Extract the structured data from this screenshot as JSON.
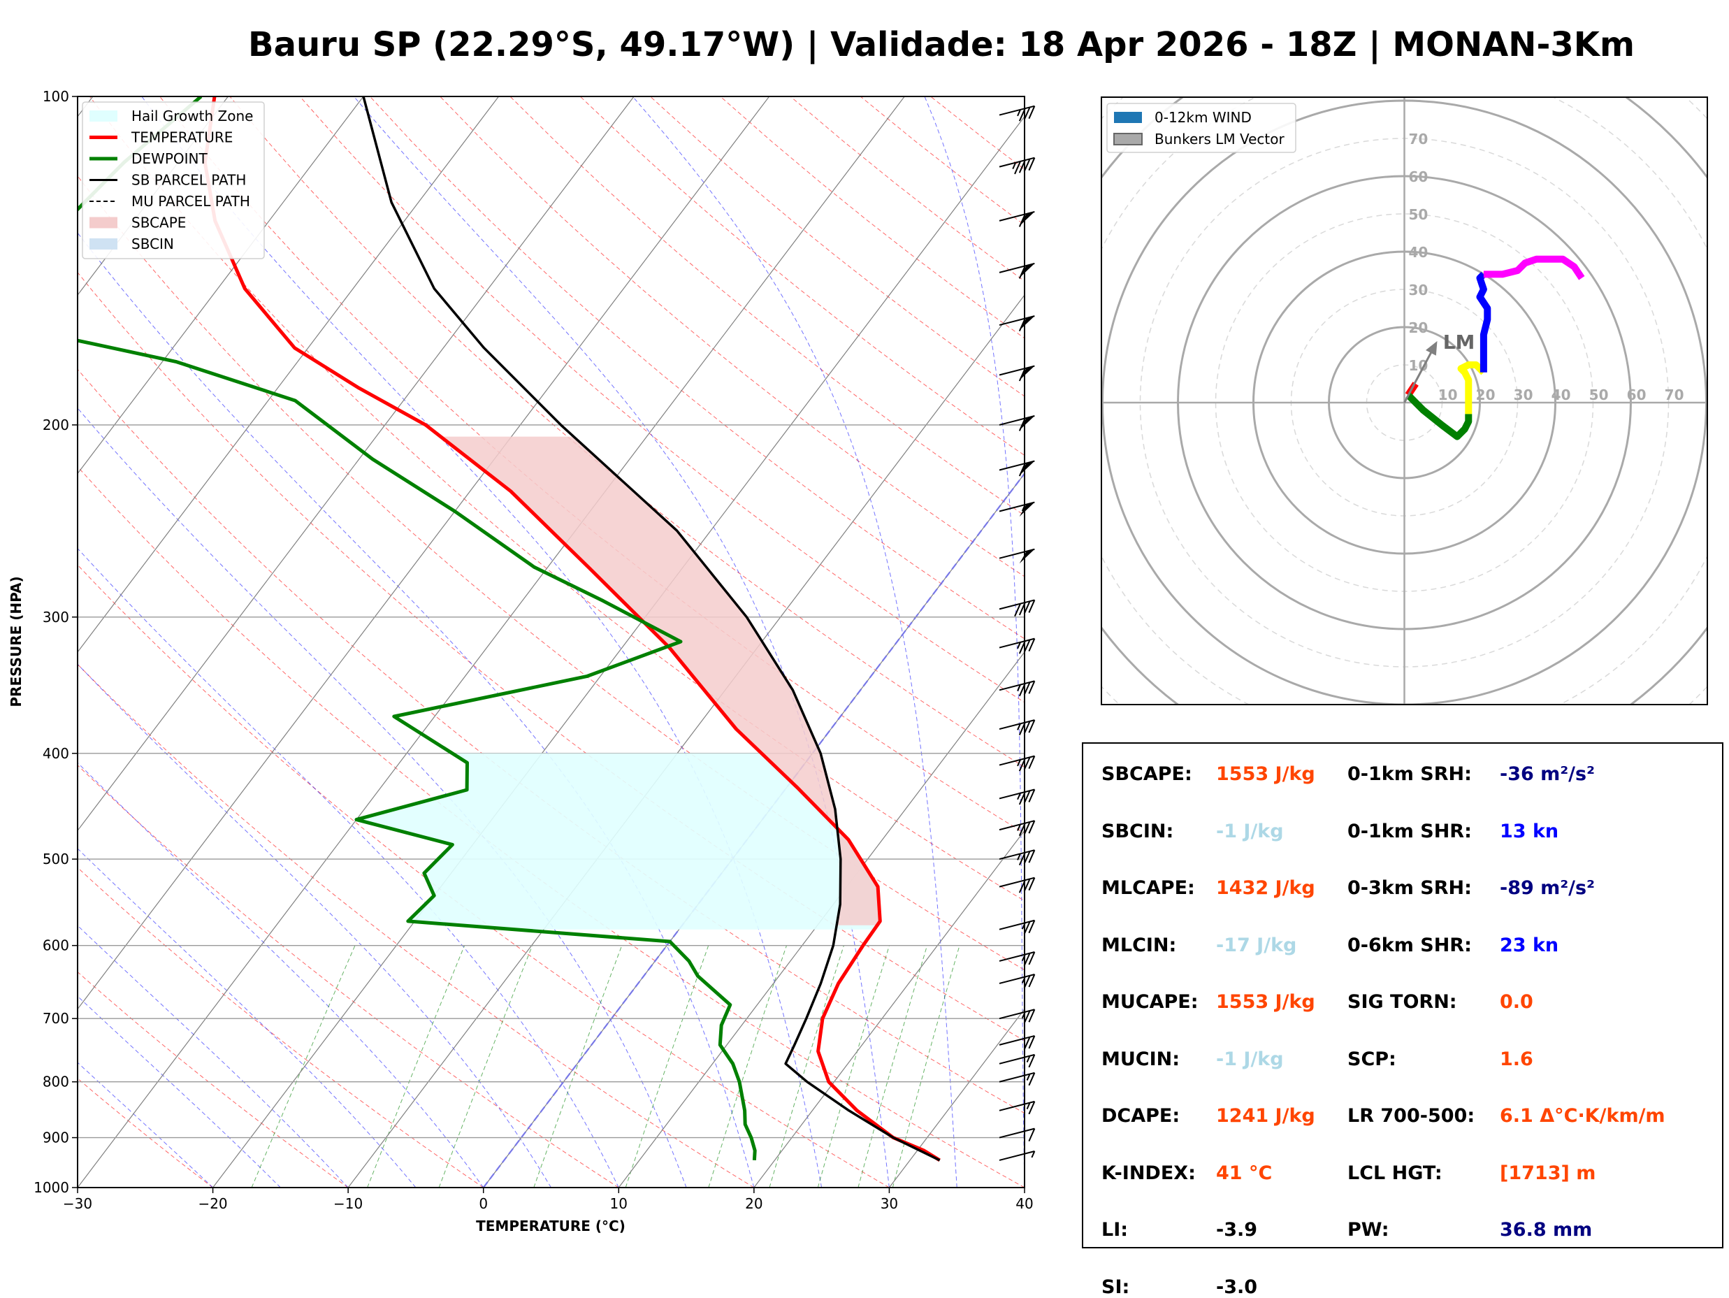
{
  "title": "Bauru SP (22.29°S, 49.17°W) | Validade: 18 Apr 2026 - 18Z | MONAN-3Km",
  "chart_data": [
    {
      "type": "line",
      "name": "skew-T log-P sounding",
      "xlabel": "TEMPERATURE (°C)",
      "ylabel": "PRESSURE (HPA)",
      "xlim": [
        -30,
        40
      ],
      "ylim": [
        1000,
        100
      ],
      "x_ticks": [
        "−30",
        "−20",
        "−10",
        "0",
        "10",
        "20",
        "30",
        "40"
      ],
      "y_ticks": [
        "100",
        "200",
        "300",
        "400",
        "500",
        "600",
        "700",
        "800",
        "900",
        "1000"
      ],
      "legend": [
        {
          "label": "Hail Growth Zone",
          "color": "#e0ffff"
        },
        {
          "label": "TEMPERATURE",
          "color": "#ff0000"
        },
        {
          "label": "DEWPOINT",
          "color": "#008000"
        },
        {
          "label": "SB PARCEL PATH",
          "color": "#000000"
        },
        {
          "label": "MU PARCEL PATH",
          "color": "#000000"
        },
        {
          "label": "SBCAPE",
          "color": "#f4cccc"
        },
        {
          "label": "SBCIN",
          "color": "#cfe2f3"
        }
      ],
      "series": [
        {
          "name": "TEMPERATURE",
          "points": [
            [
              944,
              32.2
            ],
            [
              925,
              30.5
            ],
            [
              900,
              27.5
            ],
            [
              850,
              23.3
            ],
            [
              800,
              19.6
            ],
            [
              750,
              17.1
            ],
            [
              700,
              15.6
            ],
            [
              650,
              14.8
            ],
            [
              600,
              14.5
            ],
            [
              570,
              14.4
            ],
            [
              530,
              12.3
            ],
            [
              480,
              7.5
            ],
            [
              430,
              0.8
            ],
            [
              380,
              -7.0
            ],
            [
              320,
              -16.5
            ],
            [
              270,
              -27.0
            ],
            [
              230,
              -37.0
            ],
            [
              200,
              -47.0
            ],
            [
              185,
              -54.0
            ],
            [
              170,
              -61.0
            ],
            [
              150,
              -68.0
            ],
            [
              130,
              -74.0
            ],
            [
              115,
              -78.0
            ],
            [
              100,
              -81.0
            ]
          ]
        },
        {
          "name": "DEWPOINT",
          "points": [
            [
              944,
              18.5
            ],
            [
              925,
              18.0
            ],
            [
              900,
              17.0
            ],
            [
              875,
              15.8
            ],
            [
              850,
              15.0
            ],
            [
              800,
              13.0
            ],
            [
              770,
              11.5
            ],
            [
              740,
              9.5
            ],
            [
              710,
              8.5
            ],
            [
              680,
              8.0
            ],
            [
              640,
              4.0
            ],
            [
              620,
              2.5
            ],
            [
              595,
              0.0
            ],
            [
              570,
              -20.5
            ],
            [
              540,
              -20.0
            ],
            [
              515,
              -22.0
            ],
            [
              485,
              -21.5
            ],
            [
              460,
              -30.0
            ],
            [
              432,
              -23.5
            ],
            [
              408,
              -25.0
            ],
            [
              370,
              -33.0
            ],
            [
              340,
              -21.0
            ],
            [
              316,
              -16.0
            ],
            [
              290,
              -24.0
            ],
            [
              270,
              -31.0
            ],
            [
              240,
              -40.0
            ],
            [
              215,
              -49.0
            ],
            [
              190,
              -58.0
            ],
            [
              175,
              -69.0
            ],
            [
              160,
              -86.0
            ],
            [
              145,
              -86.0
            ],
            [
              130,
              -85.0
            ],
            [
              115,
              -84.0
            ],
            [
              100,
              -82.0
            ]
          ]
        },
        {
          "name": "SB PARCEL PATH",
          "points": [
            [
              944,
              32.2
            ],
            [
              900,
              27.5
            ],
            [
              850,
              22.7
            ],
            [
              800,
              18.0
            ],
            [
              770,
              15.4
            ],
            [
              740,
              15.0
            ],
            [
              700,
              14.4
            ],
            [
              650,
              13.5
            ],
            [
              600,
              12.3
            ],
            [
              550,
              10.5
            ],
            [
              500,
              8.0
            ],
            [
              450,
              4.8
            ],
            [
              400,
              0.6
            ],
            [
              350,
              -5.0
            ],
            [
              300,
              -12.5
            ],
            [
              250,
              -22.5
            ],
            [
              200,
              -37.0
            ],
            [
              170,
              -47.0
            ],
            [
              150,
              -54.0
            ],
            [
              125,
              -62.0
            ],
            [
              100,
              -70.0
            ]
          ]
        }
      ],
      "parcel_lcl_hpa": 770,
      "hail_growth_zone_hpa": [
        400,
        580
      ],
      "wind_barbs": [
        {
          "p": 944,
          "speed_kt": 5
        },
        {
          "p": 900,
          "speed_kt": 10
        },
        {
          "p": 850,
          "speed_kt": 15
        },
        {
          "p": 800,
          "speed_kt": 15
        },
        {
          "p": 770,
          "speed_kt": 15
        },
        {
          "p": 740,
          "speed_kt": 20
        },
        {
          "p": 700,
          "speed_kt": 25
        },
        {
          "p": 650,
          "speed_kt": 25
        },
        {
          "p": 620,
          "speed_kt": 25
        },
        {
          "p": 580,
          "speed_kt": 25
        },
        {
          "p": 530,
          "speed_kt": 30
        },
        {
          "p": 500,
          "speed_kt": 35
        },
        {
          "p": 470,
          "speed_kt": 35
        },
        {
          "p": 440,
          "speed_kt": 35
        },
        {
          "p": 410,
          "speed_kt": 35
        },
        {
          "p": 380,
          "speed_kt": 35
        },
        {
          "p": 350,
          "speed_kt": 35
        },
        {
          "p": 320,
          "speed_kt": 35
        },
        {
          "p": 295,
          "speed_kt": 40
        },
        {
          "p": 265,
          "speed_kt": 50
        },
        {
          "p": 240,
          "speed_kt": 55
        },
        {
          "p": 220,
          "speed_kt": 60
        },
        {
          "p": 200,
          "speed_kt": 60
        },
        {
          "p": 180,
          "speed_kt": 60
        },
        {
          "p": 162,
          "speed_kt": 60
        },
        {
          "p": 145,
          "speed_kt": 60
        },
        {
          "p": 130,
          "speed_kt": 60
        },
        {
          "p": 116,
          "speed_kt": 45
        },
        {
          "p": 104,
          "speed_kt": 35
        }
      ]
    },
    {
      "type": "line",
      "name": "hodograph",
      "range_kt": [
        -80,
        80
      ],
      "ring_labels": [
        "10",
        "20",
        "30",
        "40",
        "50",
        "60",
        "70"
      ],
      "legend": [
        {
          "label": "0-12km WIND",
          "color": "#1f77b4"
        },
        {
          "label": "Bunkers LM Vector",
          "color": "#a9a9a9"
        }
      ],
      "lm_label": "LM",
      "lm_vector": [
        8,
        15
      ],
      "segments": [
        {
          "color": "#ff0000",
          "points": [
            [
              3,
              5
            ],
            [
              1,
              2
            ]
          ]
        },
        {
          "color": "#008000",
          "points": [
            [
              1,
              2
            ],
            [
              5,
              -2
            ],
            [
              10,
              -6
            ],
            [
              14,
              -9
            ],
            [
              16,
              -7
            ],
            [
              17,
              -5
            ],
            [
              17,
              -3
            ]
          ]
        },
        {
          "color": "#ffff00",
          "points": [
            [
              17,
              -3
            ],
            [
              17,
              2
            ],
            [
              17,
              6
            ],
            [
              16,
              8
            ],
            [
              15,
              9
            ],
            [
              17,
              10
            ],
            [
              19,
              10
            ],
            [
              21,
              8
            ]
          ]
        },
        {
          "color": "#0000ff",
          "points": [
            [
              21,
              8
            ],
            [
              21,
              13
            ],
            [
              21,
              18
            ],
            [
              22,
              22
            ],
            [
              22,
              25
            ],
            [
              20,
              28
            ],
            [
              21,
              30
            ],
            [
              20,
              33
            ],
            [
              21,
              34
            ]
          ]
        },
        {
          "color": "#ff00ff",
          "points": [
            [
              21,
              34
            ],
            [
              26,
              34
            ],
            [
              30,
              35
            ],
            [
              32,
              37
            ],
            [
              35,
              38
            ],
            [
              42,
              38
            ],
            [
              45,
              36
            ],
            [
              47,
              33
            ]
          ]
        }
      ]
    }
  ],
  "params": {
    "left": [
      {
        "label": "SBCAPE:",
        "value": "1553 J/kg",
        "color": "#ff4500"
      },
      {
        "label": "SBCIN:",
        "value": "-1 J/kg",
        "color": "#add8e6"
      },
      {
        "label": "MLCAPE:",
        "value": "1432 J/kg",
        "color": "#ff4500"
      },
      {
        "label": "MLCIN:",
        "value": "-17 J/kg",
        "color": "#add8e6"
      },
      {
        "label": "MUCAPE:",
        "value": "1553 J/kg",
        "color": "#ff4500"
      },
      {
        "label": "MUCIN:",
        "value": "-1 J/kg",
        "color": "#add8e6"
      },
      {
        "label": "DCAPE:",
        "value": "1241 J/kg",
        "color": "#ff4500"
      },
      {
        "label": "K-INDEX:",
        "value": "41 °C",
        "color": "#ff4500"
      },
      {
        "label": "LI:",
        "value": "-3.9",
        "color": "#000000"
      },
      {
        "label": "SI:",
        "value": "-3.0",
        "color": "#000000"
      }
    ],
    "right": [
      {
        "label": "0-1km SRH:",
        "value": "-36 m²/s²",
        "color": "#000080"
      },
      {
        "label": "0-1km SHR:",
        "value": "13 kn",
        "color": "#0000ff"
      },
      {
        "label": "0-3km SRH:",
        "value": "-89 m²/s²",
        "color": "#000080"
      },
      {
        "label": "0-6km SHR:",
        "value": "23 kn",
        "color": "#0000ff"
      },
      {
        "label": "SIG TORN:",
        "value": "0.0",
        "color": "#ff4500"
      },
      {
        "label": "SCP:",
        "value": "1.6",
        "color": "#ff4500"
      },
      {
        "label": "LR 700-500:",
        "value": "6.1 Δ°C·K/km/m",
        "color": "#ff4500"
      },
      {
        "label": "LCL HGT:",
        "value": "[1713] m",
        "color": "#ff4500"
      },
      {
        "label": "PW:",
        "value": "36.8 mm",
        "color": "#000080"
      }
    ]
  }
}
